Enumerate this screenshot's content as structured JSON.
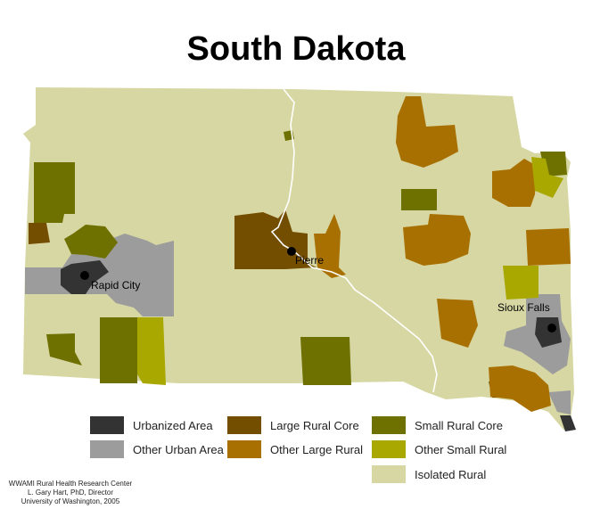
{
  "title": "South Dakota",
  "colors": {
    "urbanized": "#333333",
    "other_urban": "#9c9c9c",
    "large_rural_core": "#734d00",
    "other_large_rural": "#a87000",
    "small_rural_core": "#6e7000",
    "other_small_rural": "#a8a800",
    "isolated_rural": "#d7d7a3",
    "river": "#ffffff"
  },
  "cities": [
    "Rapid City",
    "Pierre",
    "Sioux Falls"
  ],
  "legend": [
    {
      "label": "Urbanized Area",
      "color": "#333333"
    },
    {
      "label": "Other Urban Area",
      "color": "#9c9c9c"
    },
    {
      "label": "Large Rural Core",
      "color": "#734d00"
    },
    {
      "label": "Other Large Rural",
      "color": "#a87000"
    },
    {
      "label": "Small Rural Core",
      "color": "#6e7000"
    },
    {
      "label": "Other Small Rural",
      "color": "#a8a800"
    },
    {
      "label": "Isolated Rural",
      "color": "#d7d7a3"
    }
  ],
  "credits": [
    "WWAMI Rural Health Research Center",
    "L. Gary Hart, PhD, Director",
    "University of Washington, 2005"
  ]
}
